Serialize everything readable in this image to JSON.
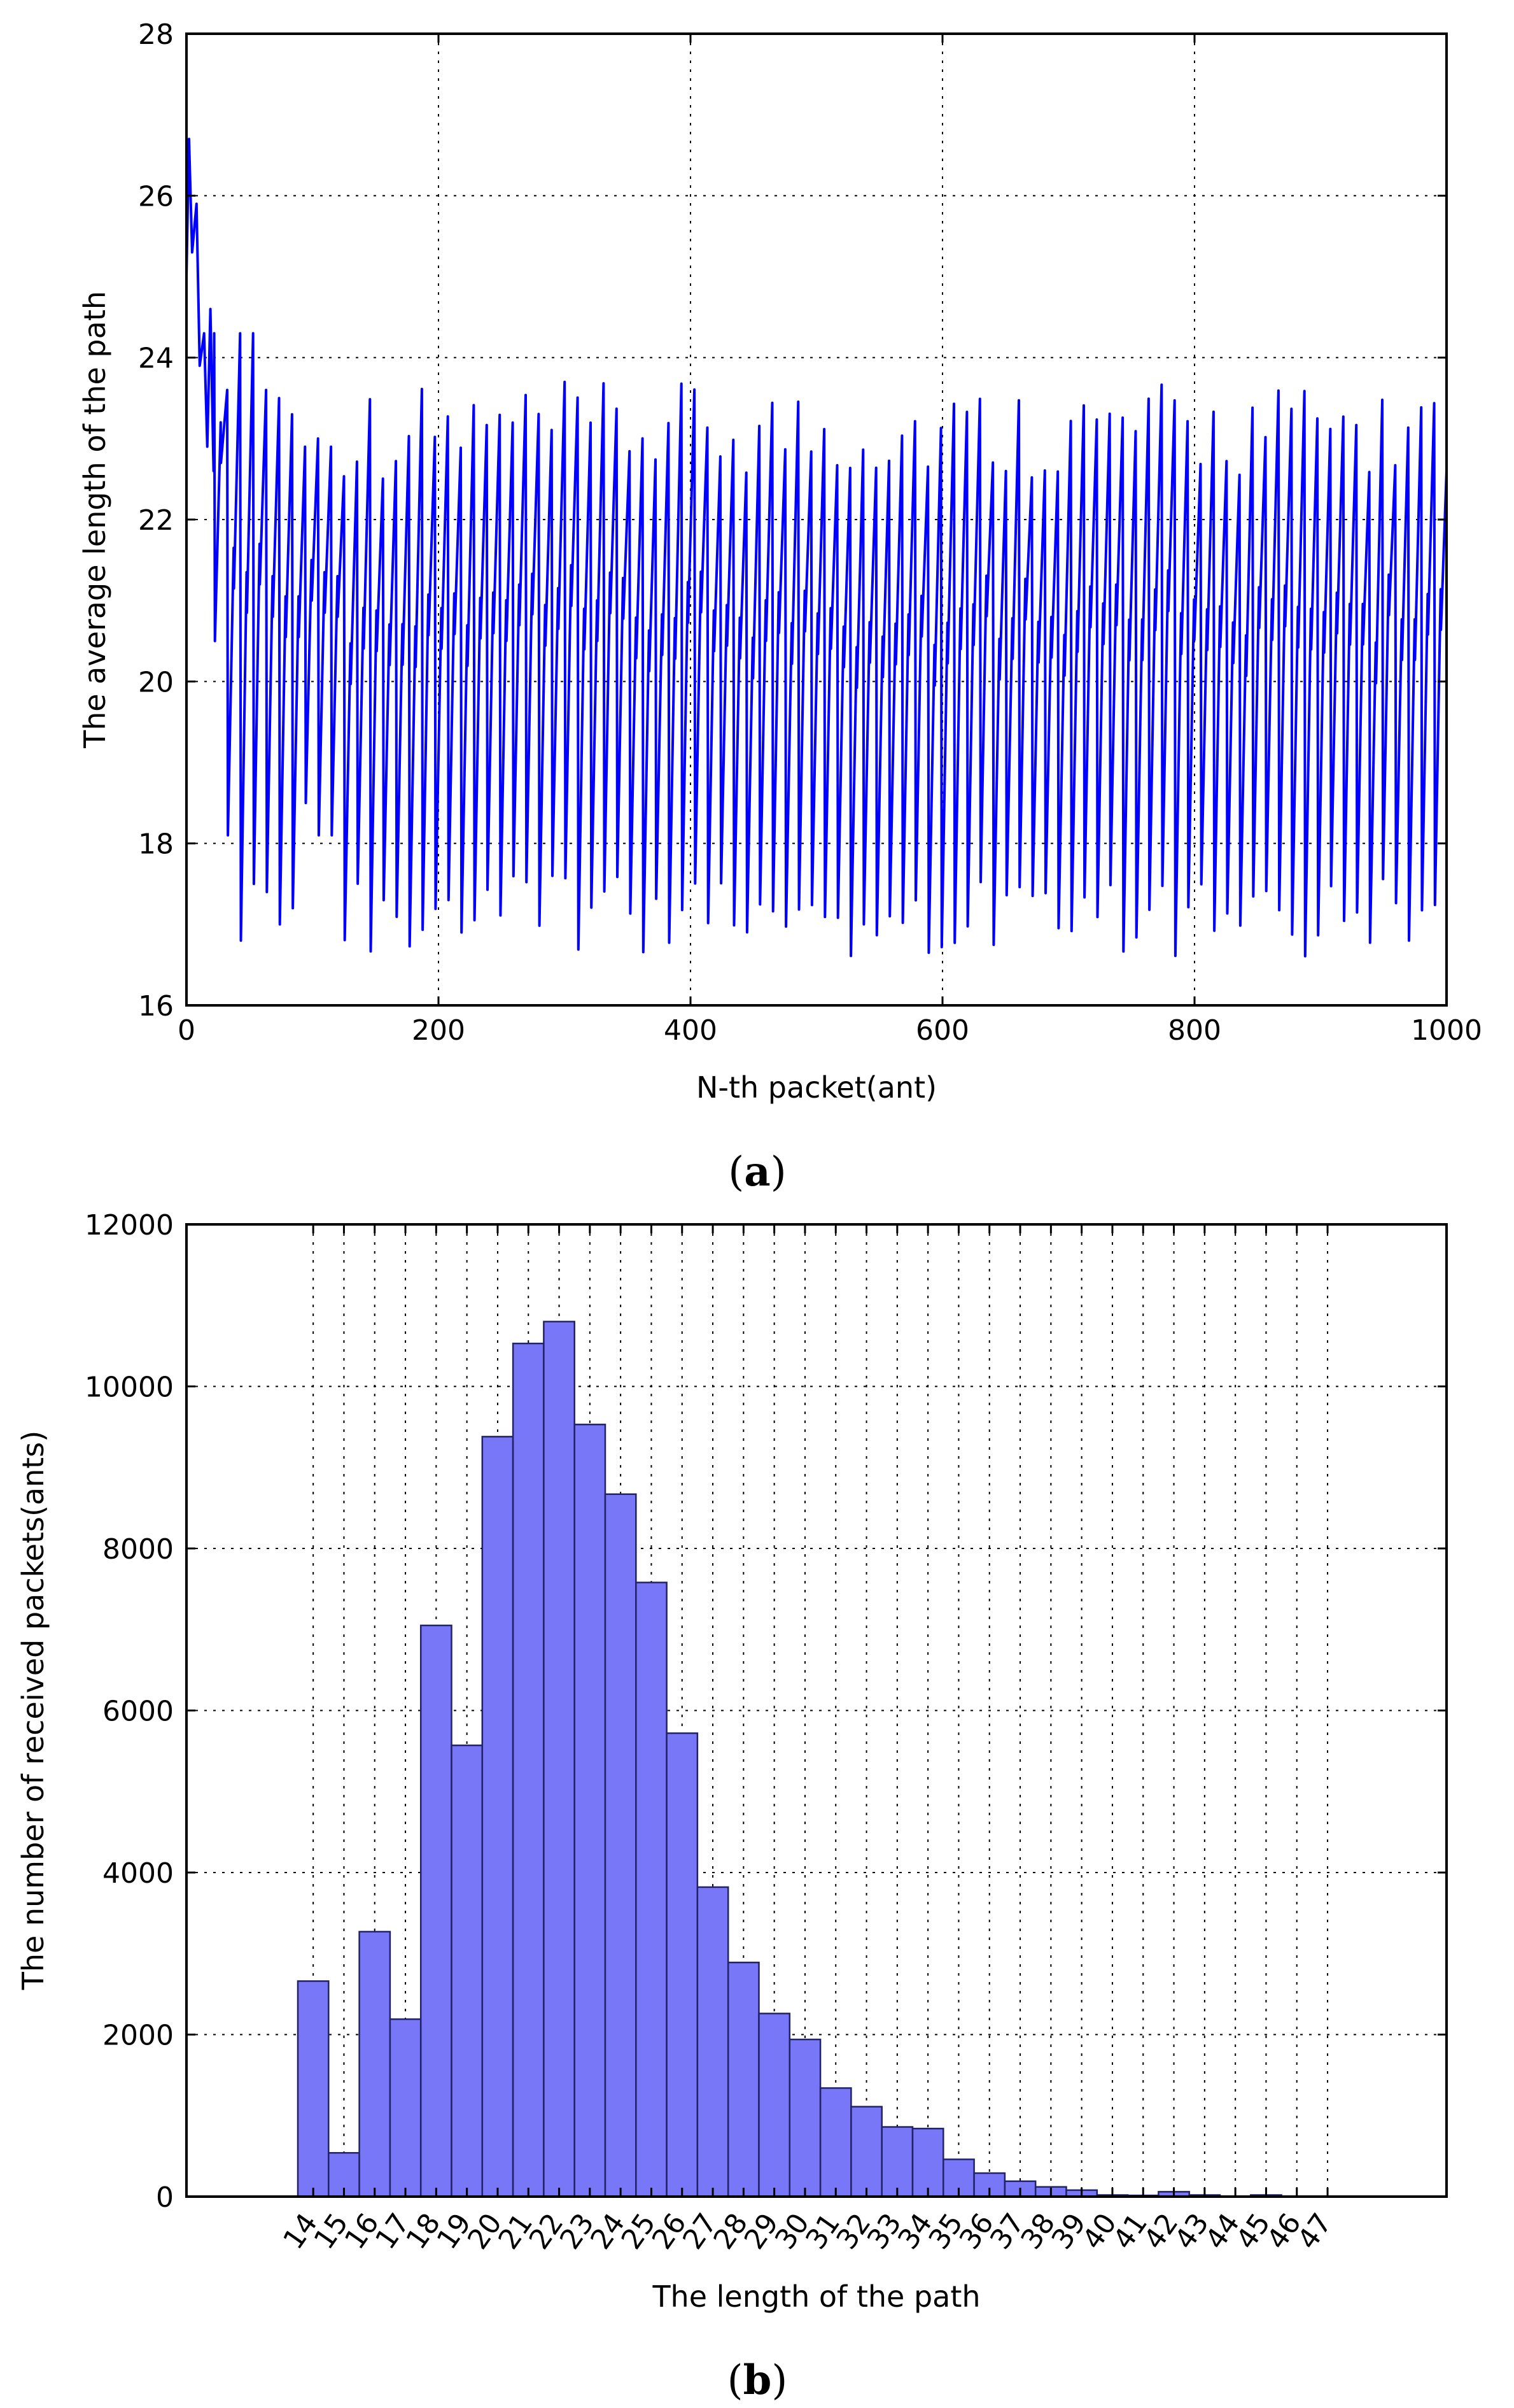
{
  "chart_data": [
    {
      "id": "a",
      "type": "line",
      "title": "",
      "caption_letter": "a",
      "xlabel": "N-th packet(ant)",
      "ylabel": "The average length of the path",
      "xlim": [
        0,
        1000
      ],
      "ylim": [
        16,
        28
      ],
      "xticks": [
        0,
        200,
        400,
        600,
        800,
        1000
      ],
      "yticks": [
        16,
        18,
        20,
        22,
        24,
        26,
        28
      ],
      "grid": true,
      "line_color": "#0000ff",
      "series": [
        {
          "name": "average path length",
          "start": {
            "x": 0,
            "y": 25.0
          },
          "initial_peaks": [
            {
              "x": 2,
              "y": 26.7
            },
            {
              "x": 8,
              "y": 25.9
            },
            {
              "x": 14,
              "y": 24.3
            },
            {
              "x": 19,
              "y": 24.6
            }
          ],
          "cycle_period": 10.3,
          "peaks_first_cycles": [
            24.3,
            23.6,
            24.3,
            24.3,
            23.6,
            23.5,
            23.3,
            22.9,
            23.0,
            22.9
          ],
          "troughs_first_cycles": [
            20.5,
            18.1,
            16.8,
            17.5,
            17.4,
            17.0,
            17.2,
            18.5,
            18.1,
            18.1
          ],
          "peak_range_after_100": [
            22.5,
            23.7
          ],
          "trough_range_after_100": [
            16.6,
            17.6
          ],
          "end": {
            "x": 1000,
            "y": 22.6
          }
        }
      ]
    },
    {
      "id": "b",
      "type": "bar",
      "title": "",
      "caption_letter": "b",
      "xlabel": "The length of the path",
      "ylabel": "The number of received packets(ants)",
      "categories": [
        "14",
        "15",
        "16",
        "17",
        "18",
        "19",
        "20",
        "21",
        "22",
        "23",
        "24",
        "25",
        "26",
        "27",
        "28",
        "29",
        "30",
        "31",
        "32",
        "33",
        "34",
        "35",
        "36",
        "37",
        "38",
        "39",
        "40",
        "41",
        "42",
        "43",
        "44",
        "45",
        "46",
        "47"
      ],
      "values": [
        2660,
        540,
        3270,
        2190,
        7050,
        5570,
        9380,
        10530,
        10800,
        9530,
        8670,
        7580,
        5720,
        3820,
        2890,
        2260,
        1940,
        1340,
        1110,
        860,
        840,
        460,
        290,
        190,
        120,
        80,
        20,
        15,
        60,
        20,
        0,
        20,
        0,
        0
      ],
      "ylim": [
        0,
        12000
      ],
      "yticks": [
        0,
        2000,
        4000,
        6000,
        8000,
        10000,
        12000
      ],
      "grid": true,
      "bar_color": "#7777f8"
    }
  ]
}
